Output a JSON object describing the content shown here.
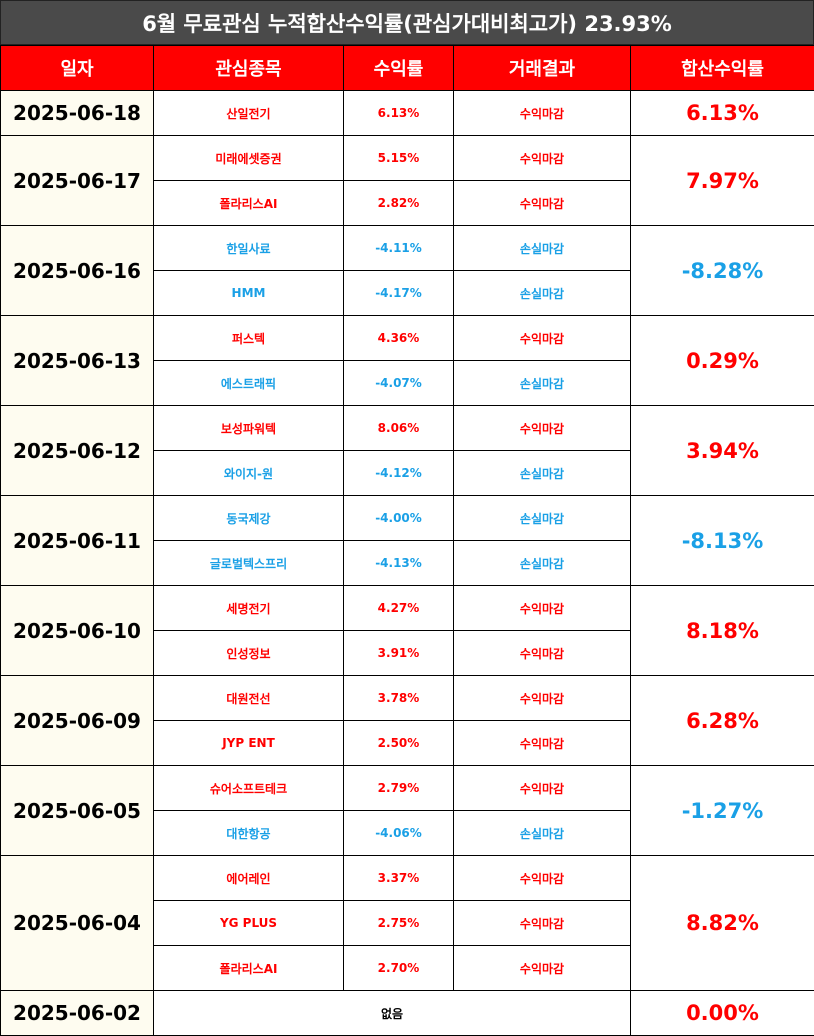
{
  "title": "6월 무료관심 누적합산수익률(관심가대비최고가) 23.93%",
  "headers": [
    "일자",
    "관심종목",
    "수익률",
    "거래결과",
    "합산수익률"
  ],
  "colors": {
    "header_bg": "#ff0000",
    "title_bg": "#4a4a4a",
    "positive": "#ff0000",
    "negative": "#1aa0e6",
    "date_bg": "#fefcf0"
  },
  "groups": [
    {
      "date": "2025-06-18",
      "total": "6.13%",
      "total_dir": "up",
      "items": [
        {
          "name": "산일전기",
          "rate": "6.13%",
          "result": "수익마감",
          "dir": "up"
        }
      ]
    },
    {
      "date": "2025-06-17",
      "total": "7.97%",
      "total_dir": "up",
      "items": [
        {
          "name": "미래에셋증권",
          "rate": "5.15%",
          "result": "수익마감",
          "dir": "up"
        },
        {
          "name": "폴라리스AI",
          "rate": "2.82%",
          "result": "수익마감",
          "dir": "up"
        }
      ]
    },
    {
      "date": "2025-06-16",
      "total": "-8.28%",
      "total_dir": "down",
      "items": [
        {
          "name": "한일사료",
          "rate": "-4.11%",
          "result": "손실마감",
          "dir": "down"
        },
        {
          "name": "HMM",
          "rate": "-4.17%",
          "result": "손실마감",
          "dir": "down"
        }
      ]
    },
    {
      "date": "2025-06-13",
      "total": "0.29%",
      "total_dir": "up",
      "items": [
        {
          "name": "퍼스텍",
          "rate": "4.36%",
          "result": "수익마감",
          "dir": "up"
        },
        {
          "name": "에스트래픽",
          "rate": "-4.07%",
          "result": "손실마감",
          "dir": "down"
        }
      ]
    },
    {
      "date": "2025-06-12",
      "total": "3.94%",
      "total_dir": "up",
      "items": [
        {
          "name": "보성파워텍",
          "rate": "8.06%",
          "result": "수익마감",
          "dir": "up"
        },
        {
          "name": "와이지-원",
          "rate": "-4.12%",
          "result": "손실마감",
          "dir": "down"
        }
      ]
    },
    {
      "date": "2025-06-11",
      "total": "-8.13%",
      "total_dir": "down",
      "items": [
        {
          "name": "동국제강",
          "rate": "-4.00%",
          "result": "손실마감",
          "dir": "down"
        },
        {
          "name": "글로벌텍스프리",
          "rate": "-4.13%",
          "result": "손실마감",
          "dir": "down"
        }
      ]
    },
    {
      "date": "2025-06-10",
      "total": "8.18%",
      "total_dir": "up",
      "items": [
        {
          "name": "세명전기",
          "rate": "4.27%",
          "result": "수익마감",
          "dir": "up"
        },
        {
          "name": "인성정보",
          "rate": "3.91%",
          "result": "수익마감",
          "dir": "up"
        }
      ]
    },
    {
      "date": "2025-06-09",
      "total": "6.28%",
      "total_dir": "up",
      "items": [
        {
          "name": "대원전선",
          "rate": "3.78%",
          "result": "수익마감",
          "dir": "up"
        },
        {
          "name": "JYP ENT",
          "rate": "2.50%",
          "result": "수익마감",
          "dir": "up"
        }
      ]
    },
    {
      "date": "2025-06-05",
      "total": "-1.27%",
      "total_dir": "down",
      "items": [
        {
          "name": "슈어소프트테크",
          "rate": "2.79%",
          "result": "수익마감",
          "dir": "up"
        },
        {
          "name": "대한항공",
          "rate": "-4.06%",
          "result": "손실마감",
          "dir": "down"
        }
      ]
    },
    {
      "date": "2025-06-04",
      "total": "8.82%",
      "total_dir": "up",
      "items": [
        {
          "name": "에어레인",
          "rate": "3.37%",
          "result": "수익마감",
          "dir": "up"
        },
        {
          "name": "YG PLUS",
          "rate": "2.75%",
          "result": "수익마감",
          "dir": "up"
        },
        {
          "name": "폴라리스AI",
          "rate": "2.70%",
          "result": "수익마감",
          "dir": "up"
        }
      ]
    }
  ],
  "empty_row": {
    "date": "2025-06-02",
    "text": "없음",
    "total": "0.00%"
  }
}
